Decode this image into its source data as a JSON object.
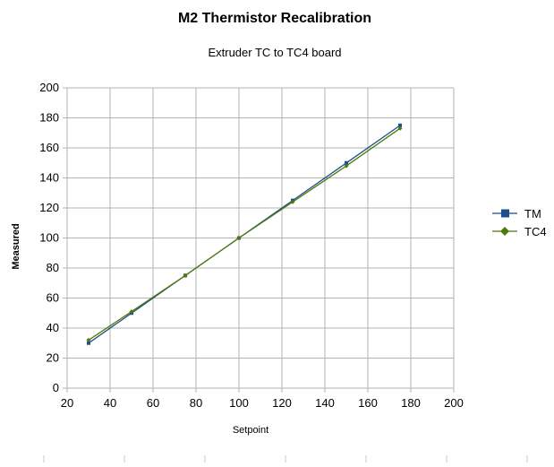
{
  "chart_data": {
    "type": "line",
    "title": "M2 Thermistor Recalibration",
    "subtitle": "Extruder TC to TC4 board",
    "xlabel": "Setpoint",
    "ylabel": "Measured",
    "xlim": [
      20,
      200
    ],
    "ylim": [
      0,
      200
    ],
    "xticks": [
      20,
      40,
      60,
      80,
      100,
      120,
      140,
      160,
      180,
      200
    ],
    "yticks": [
      0,
      20,
      40,
      60,
      80,
      100,
      120,
      140,
      160,
      180,
      200
    ],
    "grid": true,
    "legend_position": "right",
    "series": [
      {
        "name": "TM",
        "color": "#1f4e8c",
        "marker": "square",
        "x": [
          30,
          50,
          75,
          100,
          125,
          150,
          175
        ],
        "y": [
          30,
          50,
          75,
          100,
          125,
          150,
          175
        ]
      },
      {
        "name": "TC4",
        "color": "#4e7a0c",
        "marker": "diamond",
        "x": [
          30,
          50,
          75,
          100,
          125,
          150,
          175
        ],
        "y": [
          32,
          51,
          75,
          100,
          124,
          148,
          173
        ]
      }
    ]
  }
}
